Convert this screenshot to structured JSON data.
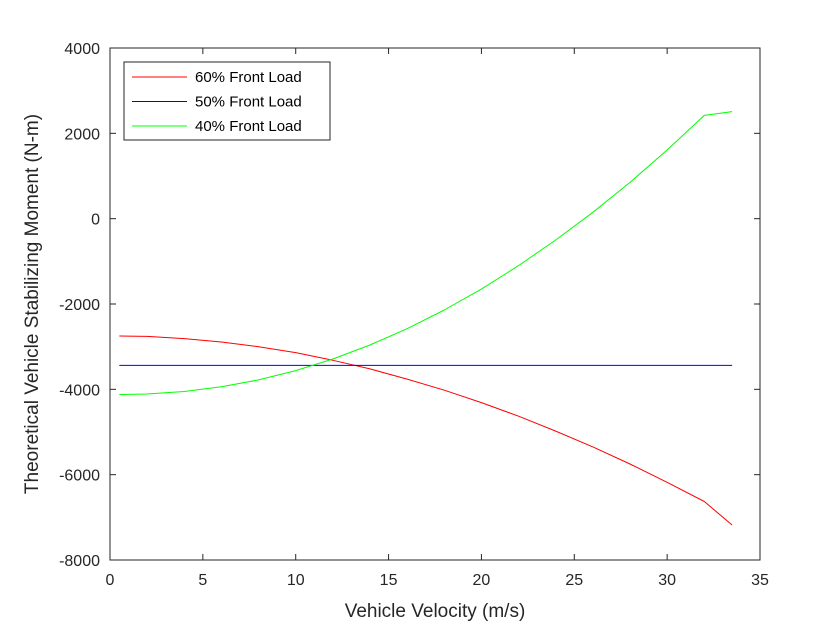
{
  "chart_data": {
    "type": "line",
    "title": "",
    "xlabel": "Vehicle Velocity (m/s)",
    "ylabel": "Theoretical Vehicle Stabilizing Moment (N-m)",
    "xlim": [
      0,
      35
    ],
    "ylim": [
      -8000,
      4000
    ],
    "xticks": [
      0,
      5,
      10,
      15,
      20,
      25,
      30,
      35
    ],
    "yticks": [
      -8000,
      -6000,
      -4000,
      -2000,
      0,
      2000,
      4000
    ],
    "grid": false,
    "legend_position": "top-left",
    "x": [
      0.5,
      2,
      4,
      6,
      8,
      10,
      12,
      14,
      16,
      18,
      20,
      22,
      24,
      26,
      28,
      30,
      32,
      33.5
    ],
    "series": [
      {
        "name": "60% Front Load",
        "color": "#ff0000",
        "values": [
          -2750,
          -2760,
          -2810,
          -2890,
          -3000,
          -3140,
          -3320,
          -3520,
          -3760,
          -4020,
          -4310,
          -4630,
          -4980,
          -5350,
          -5750,
          -6180,
          -6630,
          -7180
        ]
      },
      {
        "name": "50% Front Load",
        "color": "#0000ff",
        "values": [
          -3440,
          -3440,
          -3440,
          -3440,
          -3440,
          -3440,
          -3440,
          -3440,
          -3440,
          -3440,
          -3440,
          -3440,
          -3440,
          -3440,
          -3440,
          -3440,
          -3440,
          -3440
        ]
      },
      {
        "name": "40% Front Load",
        "color": "#00ff00",
        "values": [
          -4120,
          -4110,
          -4050,
          -3940,
          -3780,
          -3560,
          -3290,
          -2960,
          -2580,
          -2140,
          -1650,
          -1100,
          -500,
          150,
          850,
          1610,
          2420,
          2510
        ]
      }
    ]
  }
}
